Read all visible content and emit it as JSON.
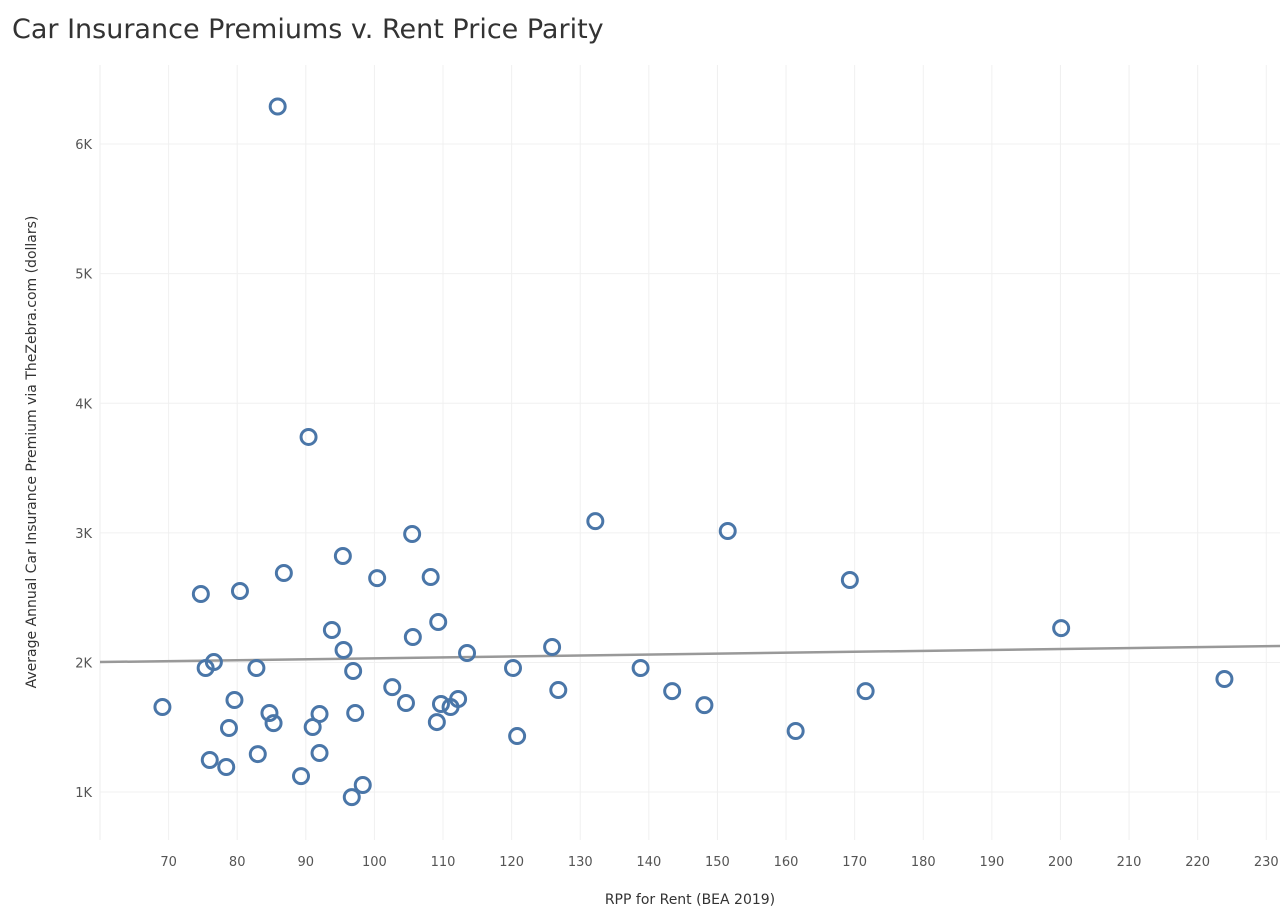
{
  "chart_data": {
    "type": "scatter",
    "title": "Car Insurance Premiums v. Rent Price Parity",
    "xlabel": "RPP for Rent (BEA 2019)",
    "ylabel": "Average Annual Car Insurance Premium via TheZebra.com (dollars)",
    "xlim": [
      60,
      232
    ],
    "ylim": [
      630,
      6610
    ],
    "grid": true,
    "x_ticks": [
      70,
      80,
      90,
      100,
      110,
      120,
      130,
      140,
      150,
      160,
      170,
      180,
      190,
      200,
      210,
      220,
      230
    ],
    "x_tick_labels": [
      "70",
      "80",
      "90",
      "100",
      "110",
      "120",
      "130",
      "140",
      "150",
      "160",
      "170",
      "180",
      "190",
      "200",
      "210",
      "220",
      "230"
    ],
    "y_ticks": [
      1000,
      2000,
      3000,
      4000,
      5000,
      6000
    ],
    "y_tick_labels": [
      "1K",
      "2K",
      "3K",
      "4K",
      "5K",
      "6K"
    ],
    "marker_color": "#4a76a8",
    "trendline": {
      "color": "#999999",
      "points": [
        [
          60,
          2003
        ],
        [
          232,
          2127
        ]
      ]
    },
    "points": [
      [
        85.9,
        6290
      ],
      [
        90.4,
        3740
      ],
      [
        132.2,
        3090
      ],
      [
        151.5,
        3014
      ],
      [
        105.5,
        2991
      ],
      [
        95.4,
        2821
      ],
      [
        86.8,
        2690
      ],
      [
        100.4,
        2651
      ],
      [
        108.2,
        2659
      ],
      [
        169.3,
        2636
      ],
      [
        74.7,
        2528
      ],
      [
        80.4,
        2551
      ],
      [
        200.1,
        2265
      ],
      [
        109.3,
        2312
      ],
      [
        93.8,
        2250
      ],
      [
        105.6,
        2196
      ],
      [
        95.5,
        2096
      ],
      [
        125.9,
        2119
      ],
      [
        113.5,
        2073
      ],
      [
        76.6,
        2003
      ],
      [
        75.4,
        1957
      ],
      [
        82.8,
        1957
      ],
      [
        120.2,
        1957
      ],
      [
        138.8,
        1957
      ],
      [
        96.9,
        1934
      ],
      [
        102.6,
        1810
      ],
      [
        126.8,
        1787
      ],
      [
        143.4,
        1779
      ],
      [
        171.6,
        1779
      ],
      [
        223.9,
        1872
      ],
      [
        79.6,
        1710
      ],
      [
        112.2,
        1718
      ],
      [
        109.7,
        1679
      ],
      [
        104.6,
        1687
      ],
      [
        111.1,
        1656
      ],
      [
        148.1,
        1671
      ],
      [
        69.1,
        1656
      ],
      [
        84.7,
        1610
      ],
      [
        92.0,
        1602
      ],
      [
        97.2,
        1610
      ],
      [
        85.3,
        1532
      ],
      [
        91.0,
        1502
      ],
      [
        78.8,
        1494
      ],
      [
        109.1,
        1540
      ],
      [
        161.4,
        1471
      ],
      [
        120.8,
        1432
      ],
      [
        83.0,
        1293
      ],
      [
        92.0,
        1301
      ],
      [
        76.0,
        1247
      ],
      [
        78.4,
        1193
      ],
      [
        89.3,
        1123
      ],
      [
        98.3,
        1054
      ],
      [
        96.7,
        961
      ]
    ]
  }
}
